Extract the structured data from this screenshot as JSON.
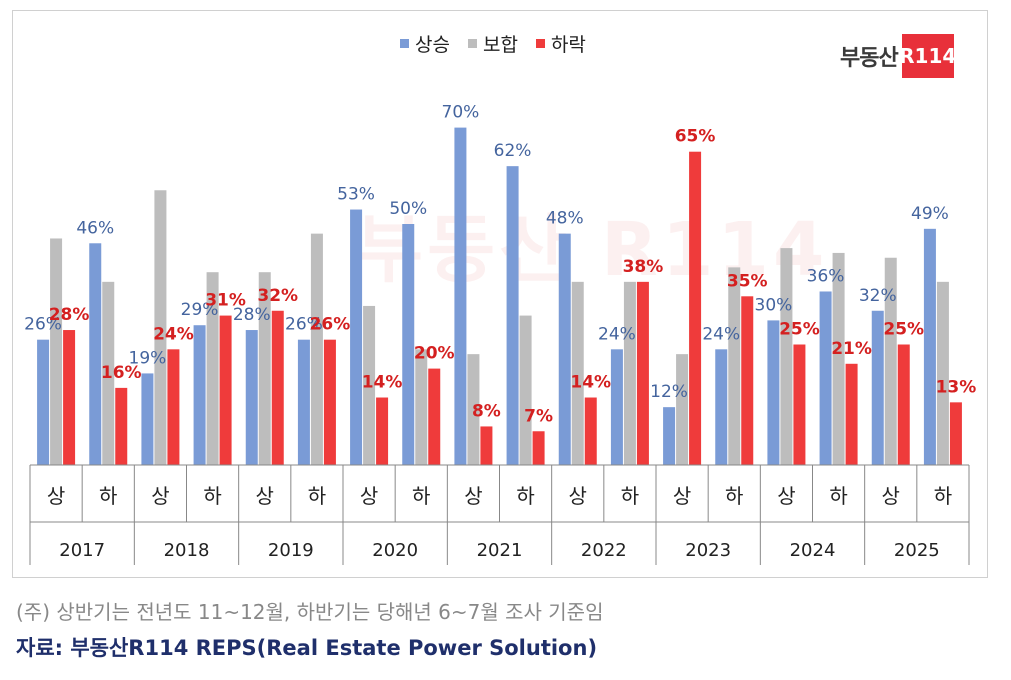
{
  "legend": {
    "items": [
      {
        "label": "상승",
        "color": "#7a9bd6"
      },
      {
        "label": "보합",
        "color": "#bdbdbd"
      },
      {
        "label": "하락",
        "color": "#ef3b3b"
      }
    ]
  },
  "logo": {
    "text": "부동산",
    "badge": "R114"
  },
  "watermark": "부동산 R114",
  "footer": {
    "note": "(주) 상반기는 전년도 11~12월, 하반기는 당해년 6~7월 조사 기준임",
    "source": "자료: 부동산R114 REPS(Real Estate Power Solution)"
  },
  "chart_data": {
    "type": "bar",
    "years": [
      "2017",
      "2018",
      "2019",
      "2020",
      "2021",
      "2022",
      "2023",
      "2024",
      "2025"
    ],
    "half_labels": [
      "상",
      "하"
    ],
    "categories": [
      "2017 상",
      "2017 하",
      "2018 상",
      "2018 하",
      "2019 상",
      "2019 하",
      "2020 상",
      "2020 하",
      "2021 상",
      "2021 하",
      "2022 상",
      "2022 하",
      "2023 상",
      "2023 하",
      "2024 상",
      "2024 하",
      "2025 상",
      "2025 하"
    ],
    "ylim": [
      0,
      75
    ],
    "series": [
      {
        "name": "상승",
        "color": "#7a9bd6",
        "label_color": "#44649e",
        "values": [
          26,
          46,
          19,
          29,
          28,
          26,
          53,
          50,
          70,
          62,
          48,
          24,
          12,
          24,
          30,
          36,
          32,
          49
        ]
      },
      {
        "name": "보합",
        "color": "#bdbdbd",
        "label_color": "#666666",
        "values": [
          47,
          38,
          57,
          40,
          40,
          48,
          33,
          24,
          23,
          31,
          38,
          38,
          23,
          41,
          45,
          44,
          43,
          38
        ]
      },
      {
        "name": "하락",
        "color": "#ef3b3b",
        "label_color": "#d42020",
        "values": [
          28,
          16,
          24,
          31,
          32,
          26,
          14,
          20,
          8,
          7,
          14,
          38,
          65,
          35,
          25,
          21,
          25,
          13
        ]
      }
    ],
    "labeled_series": [
      "상승",
      "하락"
    ],
    "label_suffix": "%"
  }
}
